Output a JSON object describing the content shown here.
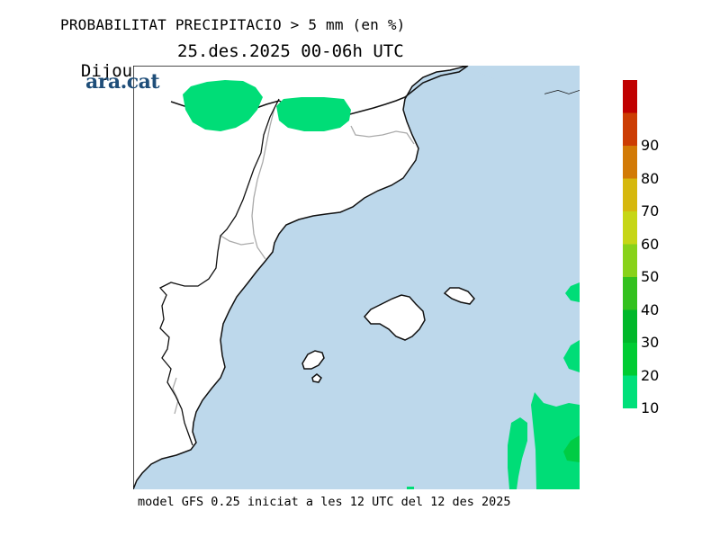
{
  "header": {
    "title": "PROBABILITAT PRECIPITACIO > 5 mm (en %)",
    "day": "Dijous",
    "datetime": "25.des.2025 00-06h UTC"
  },
  "brand": {
    "logo_text": "ara.cat",
    "color": "#1f4e79"
  },
  "footer": {
    "model_text": "model GFS 0.25 iniciat a les 12 UTC del 12 des 2025"
  },
  "map": {
    "sea_color": "#bdd8eb",
    "land_color": "#ffffff",
    "probability_fill_color": "#00dd77",
    "probability_fill_color_darker": "#00cc44"
  },
  "legend": {
    "items": [
      {
        "value": "10",
        "color": "#00e07a"
      },
      {
        "value": "20",
        "color": "#00cc33"
      },
      {
        "value": "30",
        "color": "#00b82a"
      },
      {
        "value": "40",
        "color": "#33c11e"
      },
      {
        "value": "50",
        "color": "#88d21a"
      },
      {
        "value": "60",
        "color": "#c6d616"
      },
      {
        "value": "70",
        "color": "#d6b80e"
      },
      {
        "value": "80",
        "color": "#d27a06"
      },
      {
        "value": "90",
        "color": "#cc3d04"
      },
      {
        "value": "",
        "color": "#c00000"
      }
    ]
  }
}
